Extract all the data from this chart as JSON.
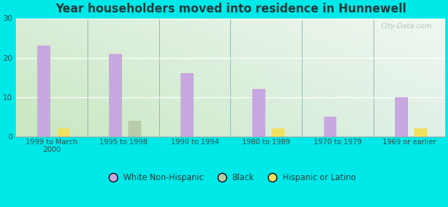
{
  "title": "Year householders moved into residence in Hunnewell",
  "categories": [
    "1999 to March\n2000",
    "1995 to 1998",
    "1990 to 1994",
    "1980 to 1989",
    "1970 to 1979",
    "1969 or earlier"
  ],
  "white_non_hispanic": [
    23,
    21,
    16,
    12,
    5,
    10
  ],
  "black": [
    0,
    4,
    0,
    0,
    0,
    0
  ],
  "hispanic_or_latino": [
    2,
    0,
    0,
    2,
    0,
    2
  ],
  "bar_width": 0.18,
  "white_color": "#c8a8e0",
  "black_color": "#b8ccaa",
  "hispanic_color": "#f0e060",
  "ylim": [
    0,
    30
  ],
  "yticks": [
    0,
    10,
    20,
    30
  ],
  "background_color": "#00e8e8",
  "watermark": "City-Data.com",
  "legend_labels": [
    "White Non-Hispanic",
    "Black",
    "Hispanic or Latino"
  ],
  "title_color": "#1a3a3a",
  "tick_color": "#2a4a4a"
}
